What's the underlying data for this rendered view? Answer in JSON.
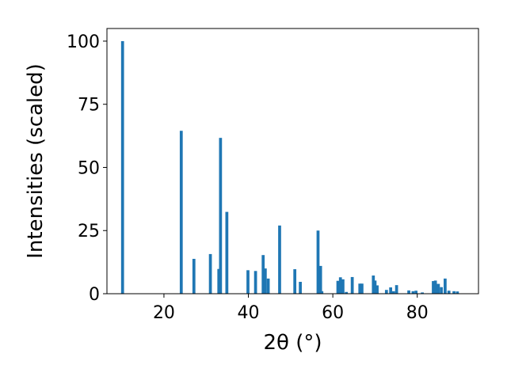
{
  "chart_data": {
    "type": "bar",
    "xlabel": "2θ (°)",
    "ylabel": "Intensities (scaled)",
    "xlim": [
      6.5,
      94.5
    ],
    "ylim": [
      0,
      105
    ],
    "x_ticks": [
      20,
      40,
      60,
      80
    ],
    "x_tick_labels": [
      "20",
      "40",
      "60",
      "80"
    ],
    "y_ticks": [
      0,
      25,
      50,
      75,
      100
    ],
    "y_tick_labels": [
      "0",
      "25",
      "50",
      "75",
      "100"
    ],
    "bar_width_data": 0.7,
    "bar_color": "#1f77b4",
    "grid": false,
    "legend": "none",
    "x": [
      10.2,
      24.1,
      27.1,
      31.0,
      33.0,
      33.4,
      34.9,
      39.9,
      41.7,
      43.5,
      44.0,
      44.7,
      47.4,
      51.0,
      52.3,
      56.5,
      56.8,
      57.1,
      57.4,
      61.2,
      61.8,
      62.4,
      63.2,
      64.6,
      66.4,
      66.9,
      69.6,
      70.0,
      70.5,
      72.7,
      73.7,
      74.4,
      75.1,
      78.0,
      79.0,
      79.7,
      81.2,
      83.8,
      84.3,
      85.0,
      85.7,
      86.6,
      87.5,
      88.7,
      89.5
    ],
    "y": [
      100,
      64.5,
      13.8,
      15.7,
      9.8,
      61.7,
      32.4,
      9.3,
      9.0,
      15.3,
      10.0,
      6.0,
      27.0,
      9.7,
      4.7,
      25.0,
      9.3,
      11.0,
      1.0,
      5.1,
      6.5,
      5.7,
      0.7,
      6.6,
      4.0,
      4.0,
      7.2,
      5.2,
      3.3,
      1.5,
      2.5,
      1.0,
      3.4,
      1.3,
      1.0,
      1.2,
      0.5,
      5.0,
      5.2,
      3.9,
      2.6,
      6.0,
      1.2,
      1.0,
      0.9
    ]
  }
}
